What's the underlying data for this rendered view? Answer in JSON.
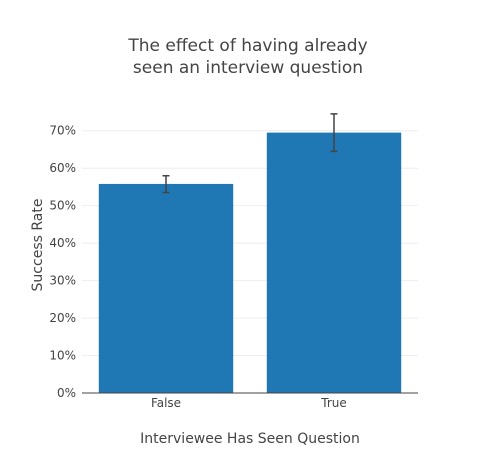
{
  "chart_data": {
    "type": "bar",
    "title_lines": [
      "The effect of having already",
      "seen an interview question"
    ],
    "categories": [
      "False",
      "True"
    ],
    "values": [
      55.8,
      69.5
    ],
    "error_low": [
      53.5,
      64.5
    ],
    "error_high": [
      58.0,
      74.5
    ],
    "xlabel": "Interviewee Has Seen Question",
    "ylabel": "Success Rate",
    "ylim": [
      0,
      75
    ],
    "yticks": [
      0,
      10,
      20,
      30,
      40,
      50,
      60,
      70
    ],
    "ytick_labels": [
      "0%",
      "10%",
      "20%",
      "30%",
      "40%",
      "50%",
      "60%",
      "70%"
    ],
    "grid": true,
    "bar_color": "#1f77b4"
  }
}
